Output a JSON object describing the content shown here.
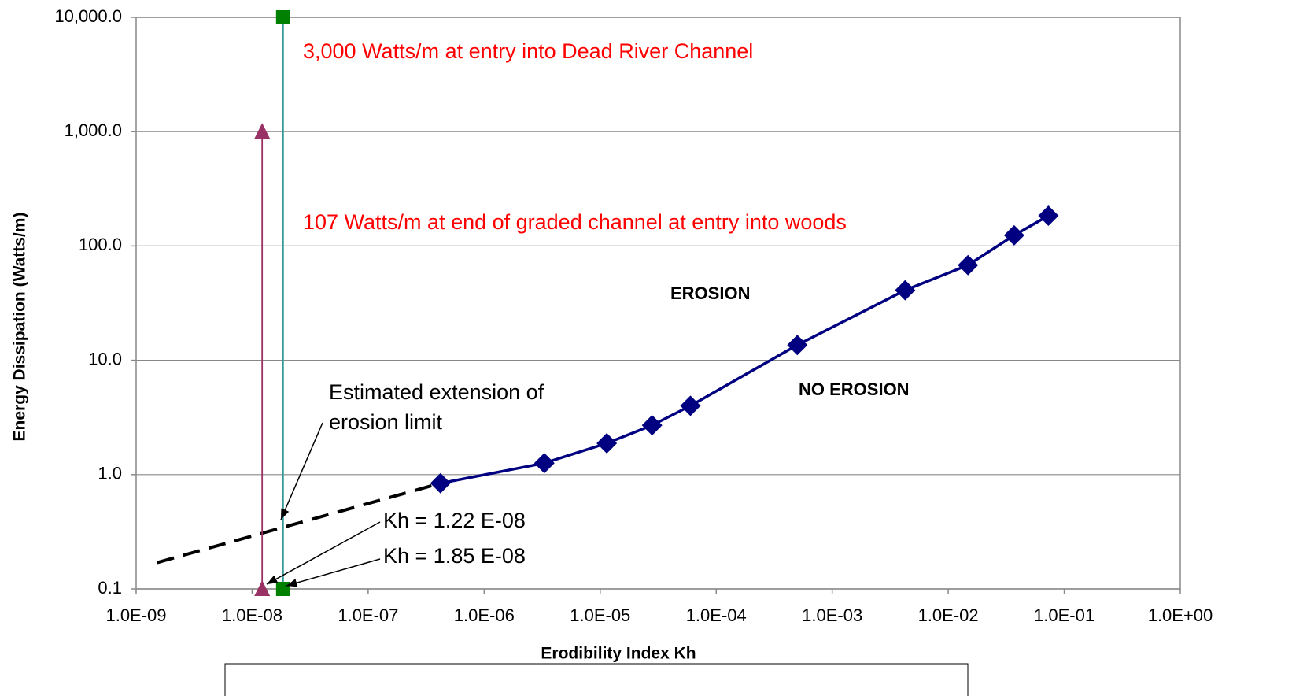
{
  "chart_data": {
    "type": "line",
    "xlabel": "Erodibility Index Kh",
    "ylabel": "Energy Dissipation (Watts/m)",
    "xscale": "log",
    "yscale": "log",
    "xlim": [
      1e-09,
      1
    ],
    "ylim": [
      0.1,
      10000
    ],
    "xticks": [
      {
        "value": 1e-09,
        "label": "1.0E-09"
      },
      {
        "value": 1e-08,
        "label": "1.0E-08"
      },
      {
        "value": 1e-07,
        "label": "1.0E-07"
      },
      {
        "value": 1e-06,
        "label": "1.0E-06"
      },
      {
        "value": 1e-05,
        "label": "1.0E-05"
      },
      {
        "value": 0.0001,
        "label": "1.0E-04"
      },
      {
        "value": 0.001,
        "label": "1.0E-03"
      },
      {
        "value": 0.01,
        "label": "1.0E-02"
      },
      {
        "value": 0.1,
        "label": "1.0E-01"
      },
      {
        "value": 1,
        "label": "1.0E+00"
      }
    ],
    "yticks": [
      0.1,
      {
        "value": 1,
        "label": "1.0"
      },
      {
        "value": 10,
        "label": "10.0"
      },
      {
        "value": 100,
        "label": "100.0"
      },
      {
        "value": 1000,
        "label": "1,000.0"
      },
      {
        "value": 10000,
        "label": "10,000.0"
      }
    ],
    "grid": true,
    "series": [
      {
        "color": "#000080",
        "marker": "diamond",
        "x": [
          4.2e-07,
          3.3e-06,
          1.14e-05,
          2.8e-05,
          6e-05,
          0.0005,
          0.00425,
          0.0148,
          0.037,
          0.073
        ],
        "values": [
          0.84,
          1.26,
          1.88,
          2.7,
          4.0,
          13.6,
          41,
          68,
          124,
          184
        ]
      },
      {
        "color": "#000000",
        "dashed": true,
        "x": [
          1.52e-09,
          4.2e-07
        ],
        "values": [
          0.17,
          0.84
        ]
      },
      {
        "color": "#993366",
        "marker": "triangle",
        "x": [
          1.22e-08,
          1.22e-08
        ],
        "values": [
          0.1,
          1000
        ]
      },
      {
        "color": "#339999",
        "marker_color": "#008000",
        "marker": "square",
        "x": [
          1.85e-08,
          1.85e-08
        ],
        "values": [
          0.1,
          10000
        ]
      }
    ],
    "annotations": {
      "dead_river": "3,000 Watts/m at entry into Dead River Channel",
      "woods": "107 Watts/m at end of graded channel at entry into woods",
      "erosion": "EROSION",
      "no_erosion": "NO EROSION",
      "extension": [
        "Estimated extension of",
        "erosion limit"
      ],
      "kh1": "Kh = 1.22 E-08",
      "kh2": "Kh = 1.85 E-08"
    }
  }
}
